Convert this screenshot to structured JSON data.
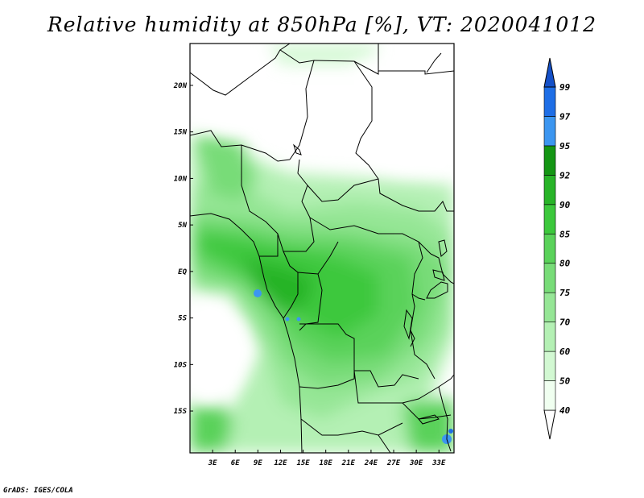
{
  "title": "Relative humidity at 850hPa [%], VT: 2020041012",
  "credit": "GrADS: IGES/COLA",
  "map": {
    "lon_range": [
      0,
      35
    ],
    "lat_range": [
      -19.5,
      24.5
    ],
    "lon_ticks": [
      {
        "value": 3,
        "label": "3E"
      },
      {
        "value": 6,
        "label": "6E"
      },
      {
        "value": 9,
        "label": "9E"
      },
      {
        "value": 12,
        "label": "12E"
      },
      {
        "value": 15,
        "label": "15E"
      },
      {
        "value": 18,
        "label": "18E"
      },
      {
        "value": 21,
        "label": "21E"
      },
      {
        "value": 24,
        "label": "24E"
      },
      {
        "value": 27,
        "label": "27E"
      },
      {
        "value": 30,
        "label": "30E"
      },
      {
        "value": 33,
        "label": "33E"
      }
    ],
    "lat_ticks": [
      {
        "value": 20,
        "label": "20N"
      },
      {
        "value": 15,
        "label": "15N"
      },
      {
        "value": 10,
        "label": "10N"
      },
      {
        "value": 5,
        "label": "5N"
      },
      {
        "value": 0,
        "label": "EQ"
      },
      {
        "value": -5,
        "label": "5S"
      },
      {
        "value": -10,
        "label": "10S"
      },
      {
        "value": -15,
        "label": "15S"
      }
    ]
  },
  "colorbar": {
    "levels": [
      "40",
      "50",
      "60",
      "70",
      "75",
      "80",
      "85",
      "90",
      "92",
      "95",
      "97",
      "99"
    ],
    "colors": [
      "#f0fff0",
      "#d2f8d2",
      "#b4f0b4",
      "#96e696",
      "#78dc78",
      "#5ad25a",
      "#3cc83c",
      "#28b428",
      "#149614",
      "#3c96f0",
      "#1e6ee6",
      "#1450c8"
    ]
  }
}
